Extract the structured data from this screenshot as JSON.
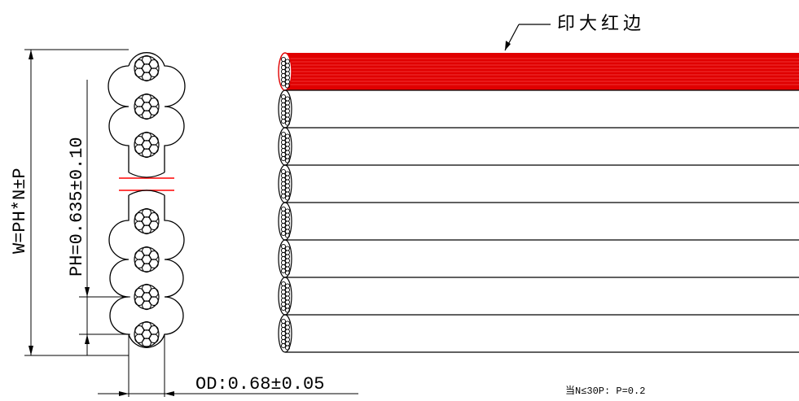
{
  "labels": {
    "red_edge": "印大红边",
    "width_formula": "W=PH*N±P",
    "pitch": "PH=0.635±0.10",
    "od": "OD:0.68±0.05",
    "note": "当N≤30P: P=0.2"
  },
  "colors": {
    "line": "#000000",
    "red_edge": "#e00000",
    "red_break": "#ff0000"
  }
}
